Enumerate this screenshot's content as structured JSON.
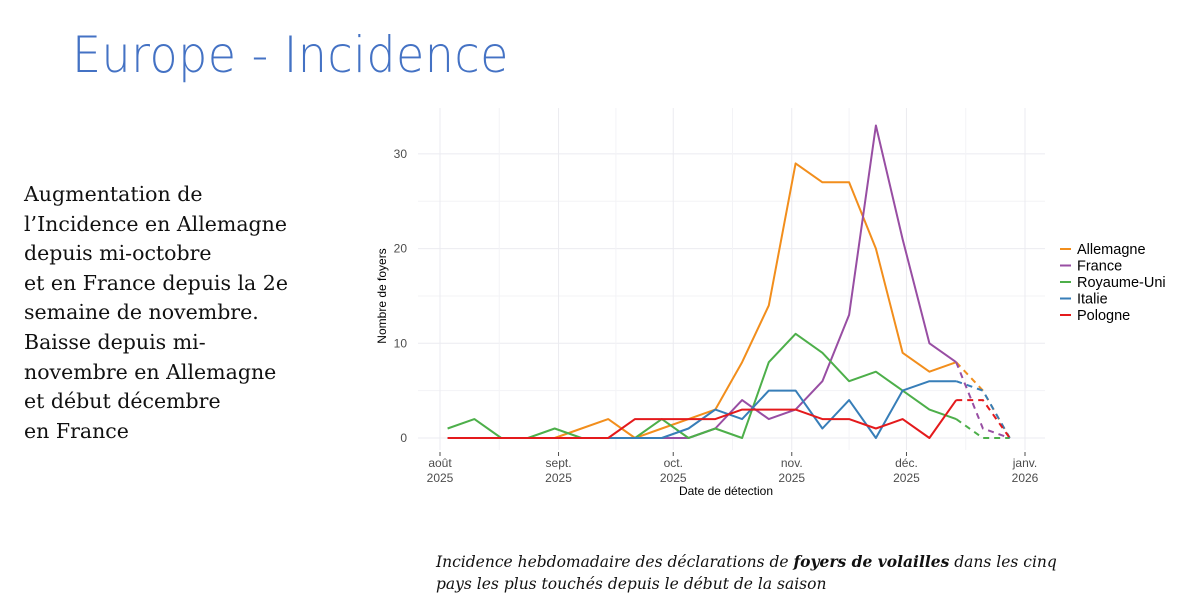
{
  "slide": {
    "title": "Europe - Incidence",
    "side_text_lines": [
      "Augmentation de",
      "l’Incidence en Allemagne",
      "depuis mi-octobre",
      "et en France depuis la 2e",
      "semaine de novembre.",
      "Baisse depuis mi-",
      "novembre en Allemagne",
      "et début décembre",
      "en France"
    ],
    "caption": {
      "before": "Incidence hebdomadaire des déclarations de ",
      "bold": "foyers de volailles",
      "after": " dans les cinq pays les plus touchés depuis le début de la saison"
    }
  },
  "chart_data": {
    "type": "line",
    "title": "",
    "xlabel": "Date de détection",
    "ylabel": "Nombre de foyers",
    "ylim": [
      0,
      34
    ],
    "y_ticks": [
      0,
      10,
      20,
      30
    ],
    "x_ticks": [
      {
        "line1": "août",
        "line2": "2025",
        "date": "2025-08-01"
      },
      {
        "line1": "sept.",
        "line2": "2025",
        "date": "2025-09-01"
      },
      {
        "line1": "oct.",
        "line2": "2025",
        "date": "2025-10-01"
      },
      {
        "line1": "nov.",
        "line2": "2025",
        "date": "2025-11-01"
      },
      {
        "line1": "déc.",
        "line2": "2025",
        "date": "2025-12-01"
      },
      {
        "line1": "janv.",
        "line2": "2026",
        "date": "2026-01-01"
      }
    ],
    "x_weeks_start": "2025-08-03",
    "x_week_step_days": 7,
    "n_weeks": 22,
    "dashed_from_index": 19,
    "grid": true,
    "legend_position": "right",
    "series": [
      {
        "name": "Allemagne",
        "color": "#f28e1c",
        "values": [
          0,
          0,
          0,
          0,
          0,
          1,
          2,
          0,
          1,
          2,
          3,
          8,
          14,
          29,
          27,
          27,
          20,
          9,
          7,
          8,
          5,
          0
        ]
      },
      {
        "name": "France",
        "color": "#984ea3",
        "values": [
          0,
          0,
          0,
          0,
          0,
          0,
          0,
          0,
          0,
          0,
          1,
          4,
          2,
          3,
          6,
          13,
          33,
          21,
          10,
          8,
          1,
          0
        ]
      },
      {
        "name": "Royaume-Uni",
        "color": "#4daf4a",
        "values": [
          1,
          2,
          0,
          0,
          1,
          0,
          0,
          0,
          2,
          0,
          1,
          0,
          8,
          11,
          9,
          6,
          7,
          5,
          3,
          2,
          0,
          0
        ]
      },
      {
        "name": "Italie",
        "color": "#377eb8",
        "values": [
          0,
          0,
          0,
          0,
          0,
          0,
          0,
          0,
          0,
          1,
          3,
          2,
          5,
          5,
          1,
          4,
          0,
          5,
          6,
          6,
          5,
          0
        ]
      },
      {
        "name": "Pologne",
        "color": "#e41a1c",
        "values": [
          0,
          0,
          0,
          0,
          0,
          0,
          0,
          2,
          2,
          2,
          2,
          3,
          3,
          3,
          2,
          2,
          1,
          2,
          0,
          4,
          4,
          0
        ]
      }
    ]
  }
}
